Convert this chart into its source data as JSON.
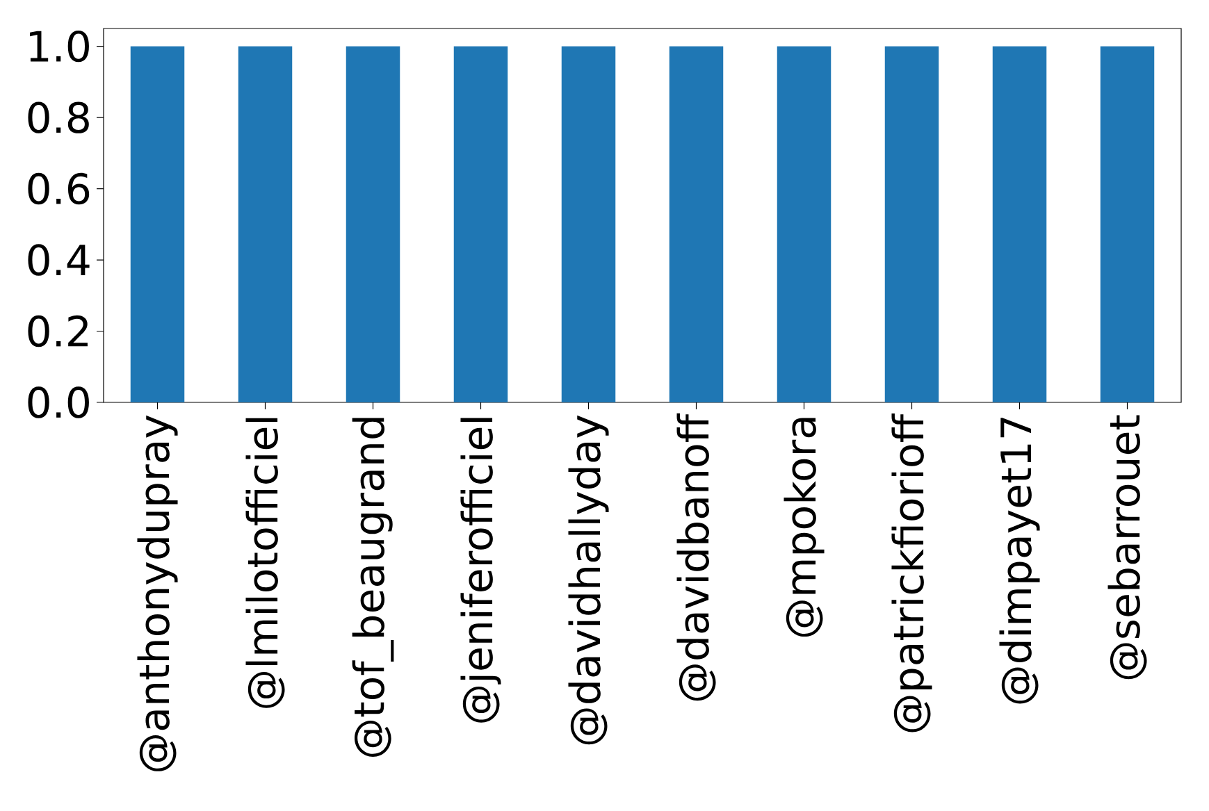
{
  "chart_data": {
    "type": "bar",
    "categories": [
      "@anthonydupray",
      "@lmilotofficiel",
      "@tof_beaugrand",
      "@jeniferofficiel",
      "@davidhallyday",
      "@davidbanoff",
      "@mpokora",
      "@patrickfiorioff",
      "@dimpayet17",
      "@sebarrouet"
    ],
    "values": [
      1.0,
      1.0,
      1.0,
      1.0,
      1.0,
      1.0,
      1.0,
      1.0,
      1.0,
      1.0
    ],
    "color": "#1f77b4",
    "ylim": [
      0,
      1.05
    ],
    "yticks": [
      {
        "value": 0,
        "label": "0.0"
      },
      {
        "value": 0.2,
        "label": "0.2"
      },
      {
        "value": 0.4,
        "label": "0.4"
      },
      {
        "value": 0.6,
        "label": "0.6"
      },
      {
        "value": 0.8,
        "label": "0.8"
      },
      {
        "value": 1.0,
        "label": "1.0"
      }
    ],
    "ylabel": null
  }
}
